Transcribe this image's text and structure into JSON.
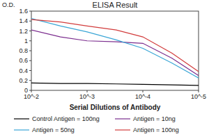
{
  "chart_data": {
    "type": "line",
    "title": "ELISA Result",
    "y_label": "O.D.",
    "x_label": "Serial Dilutions of Antibody",
    "x": [
      0.01,
      0.003,
      0.001,
      0.0003,
      0.0001,
      3e-05,
      1e-05
    ],
    "xlim": [
      0.01,
      1e-05
    ],
    "xticks": [
      {
        "value": 0.01,
        "label": "10^-2"
      },
      {
        "value": 0.001,
        "label": "10^-3"
      },
      {
        "value": 0.0001,
        "label": "10^-4"
      },
      {
        "value": 1e-05,
        "label": "10^-5"
      }
    ],
    "ylim": [
      0,
      1.6
    ],
    "yticks": [
      0,
      0.2,
      0.4,
      0.6,
      0.8,
      1,
      1.2,
      1.4,
      1.6
    ],
    "log": "x",
    "grid": false,
    "legend": "bottom",
    "series": [
      {
        "name": "Control Antigen = 100ng",
        "color": "#000000",
        "values": [
          0.15,
          0.14,
          0.14,
          0.13,
          0.12,
          0.11,
          0.1
        ]
      },
      {
        "name": "Antigen = 10ng",
        "color": "#7b2d8e",
        "values": [
          1.22,
          1.08,
          1.0,
          0.98,
          0.95,
          0.65,
          0.3
        ]
      },
      {
        "name": "Antigen = 50ng",
        "color": "#3aa6d6",
        "values": [
          1.45,
          1.3,
          1.18,
          1.02,
          0.85,
          0.55,
          0.25
        ]
      },
      {
        "name": "Antigen = 100ng",
        "color": "#d23c3c",
        "values": [
          1.43,
          1.38,
          1.3,
          1.22,
          1.08,
          0.75,
          0.38
        ]
      }
    ]
  }
}
